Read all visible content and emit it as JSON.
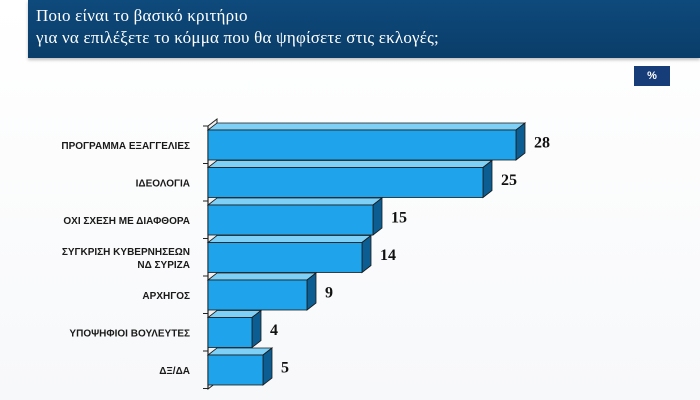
{
  "header": {
    "title_line1": "Ποιο είναι το βασικό κριτήριο",
    "title_line2": "για να επιλέξετε το κόμμα που θα ψηφίσετε στις εκλογές;"
  },
  "unit_badge": "%",
  "colors": {
    "header_bg": "#0e4a7c",
    "bar_front": "#1fa3ea",
    "bar_top": "#7fd0f6",
    "bar_side": "#0c5e92",
    "unit_badge_bg": "#163d78"
  },
  "chart_data": {
    "type": "bar",
    "orientation": "horizontal",
    "three_d": true,
    "categories": [
      [
        "ΠΡΟΓΡΑΜΜΑ ΕΞΑΓΓΕΛΙΕΣ"
      ],
      [
        "ΙΔΕΟΛΟΓΙΑ"
      ],
      [
        "ΟΧΙ ΣΧΕΣΗ ΜΕ ΔΙΑΦΘΟΡΑ"
      ],
      [
        "ΣΥΓΚΡΙΣΗ ΚΥΒΕΡΝΗΣΕΩΝ",
        "ΝΔ ΣΥΡΙΖΑ"
      ],
      [
        "ΑΡΧΗΓΟΣ"
      ],
      [
        "ΥΠΟΨΗΦΙΟΙ ΒΟΥΛΕΥΤΕΣ"
      ],
      [
        "ΔΞ/ΔΑ"
      ]
    ],
    "values": [
      28,
      25,
      15,
      14,
      9,
      4,
      5
    ],
    "unit": "%",
    "grid": false,
    "legend": "none"
  }
}
